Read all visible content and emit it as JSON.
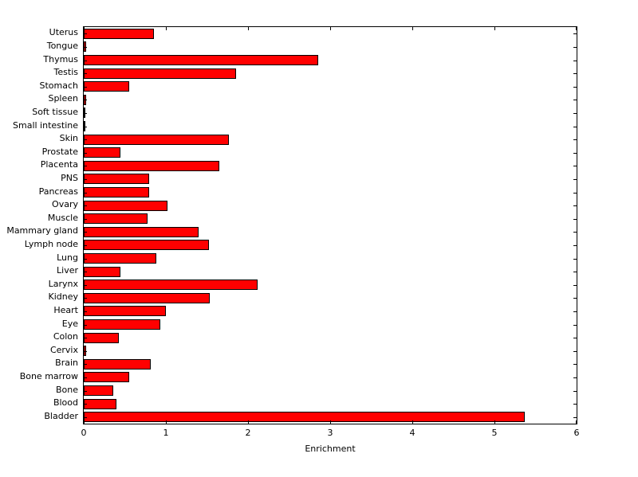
{
  "figure": {
    "background_color": "#ffffff",
    "plot_background_color": "#ffffff",
    "axis_color": "#000000"
  },
  "chart_data": {
    "type": "bar",
    "orientation": "horizontal",
    "title": "",
    "xlabel": "Enrichment",
    "ylabel": "",
    "xlim": [
      0,
      6
    ],
    "xticks": [
      0,
      1,
      2,
      3,
      4,
      5,
      6
    ],
    "grid": false,
    "legend_position": "none",
    "bar_color": "#ff0000",
    "bar_edge_color": "#000000",
    "category_order": "top-to-bottom",
    "categories": [
      "Uterus",
      "Tongue",
      "Thymus",
      "Testis",
      "Stomach",
      "Spleen",
      "Soft tissue",
      "Small intestine",
      "Skin",
      "Prostate",
      "Placenta",
      "PNS",
      "Pancreas",
      "Ovary",
      "Muscle",
      "Mammary gland",
      "Lymph node",
      "Lung",
      "Liver",
      "Larynx",
      "Kidney",
      "Heart",
      "Eye",
      "Colon",
      "Cervix",
      "Brain",
      "Bone marrow",
      "Bone",
      "Blood",
      "Bladder"
    ],
    "values": [
      0.85,
      0.03,
      2.85,
      1.85,
      0.55,
      0.03,
      0.01,
      0.01,
      1.77,
      0.45,
      1.65,
      0.8,
      0.8,
      1.02,
      0.78,
      1.4,
      1.52,
      0.88,
      0.45,
      2.12,
      1.53,
      1.0,
      0.93,
      0.43,
      0.03,
      0.82,
      0.55,
      0.36,
      0.4,
      5.37
    ]
  }
}
